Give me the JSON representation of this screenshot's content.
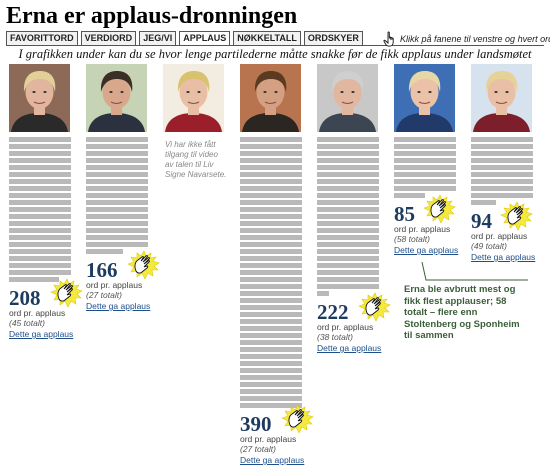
{
  "title": "Erna er applaus-dronningen",
  "tabs": [
    "FAVORITTORD",
    "VERDIORD",
    "JEG/VI",
    "APPLAUS",
    "NØKKELTALL",
    "ORDSKYER"
  ],
  "active_tab": "APPLAUS",
  "hint": "Klikk på fanene til venstre og hvert ord",
  "subtitle": "I grafikken under kan du se hvor lenge partilederne måtte snakke før de fikk applaus under landsmøtet",
  "labels": {
    "words_unit": "ord pr. applaus",
    "link": "Dette ga applaus"
  },
  "leaders": [
    {
      "words_per_applause": "208",
      "total": "(45 totalt)",
      "photo_bg": "#8d6a57",
      "hair": "#e3cf9a",
      "skin": "#e2b59e",
      "clothes": "#2a2a2a"
    },
    {
      "words_per_applause": "166",
      "total": "(27 totalt)",
      "photo_bg": "#c6d4b5",
      "hair": "#3a2e26",
      "skin": "#d9a88c",
      "clothes": "#2c3140"
    },
    {
      "novideo": "Vi har ikke fått tilgang til video av talen til Liv Signe Navarsete.",
      "photo_bg": "#f2ede0",
      "hair": "#d9c26f",
      "skin": "#e8bfa5",
      "clothes": "#9a1f2a"
    },
    {
      "words_per_applause": "390",
      "total": "(27 totalt)",
      "photo_bg": "#b8734f",
      "hair": "#5b3a22",
      "skin": "#d3a082",
      "clothes": "#2b2622"
    },
    {
      "words_per_applause": "222",
      "total": "(38 totalt)",
      "photo_bg": "#c8c8c8",
      "hair": "#cfcfcf",
      "skin": "#e2b7a0",
      "clothes": "#3c4552"
    },
    {
      "words_per_applause": "85",
      "total": "(58 totalt)",
      "photo_bg": "#3e6fb4",
      "hair": "#e8d7a6",
      "skin": "#ebc1a8",
      "clothes": "#223a6a"
    },
    {
      "words_per_applause": "94",
      "total": "(49 totalt)",
      "photo_bg": "#d6e2ee",
      "hair": "#e6d296",
      "skin": "#e9bfa5",
      "clothes": "#7d1f2a"
    }
  ],
  "note": "Erna ble avbrutt mest og fikk flest applauser; 58 totalt – flere enn Stoltenberg og Sponheim til sammen",
  "colors": {
    "bars": "#b9b9b9",
    "accent": "#1d3b5e",
    "note": "#3a5f3a"
  }
}
